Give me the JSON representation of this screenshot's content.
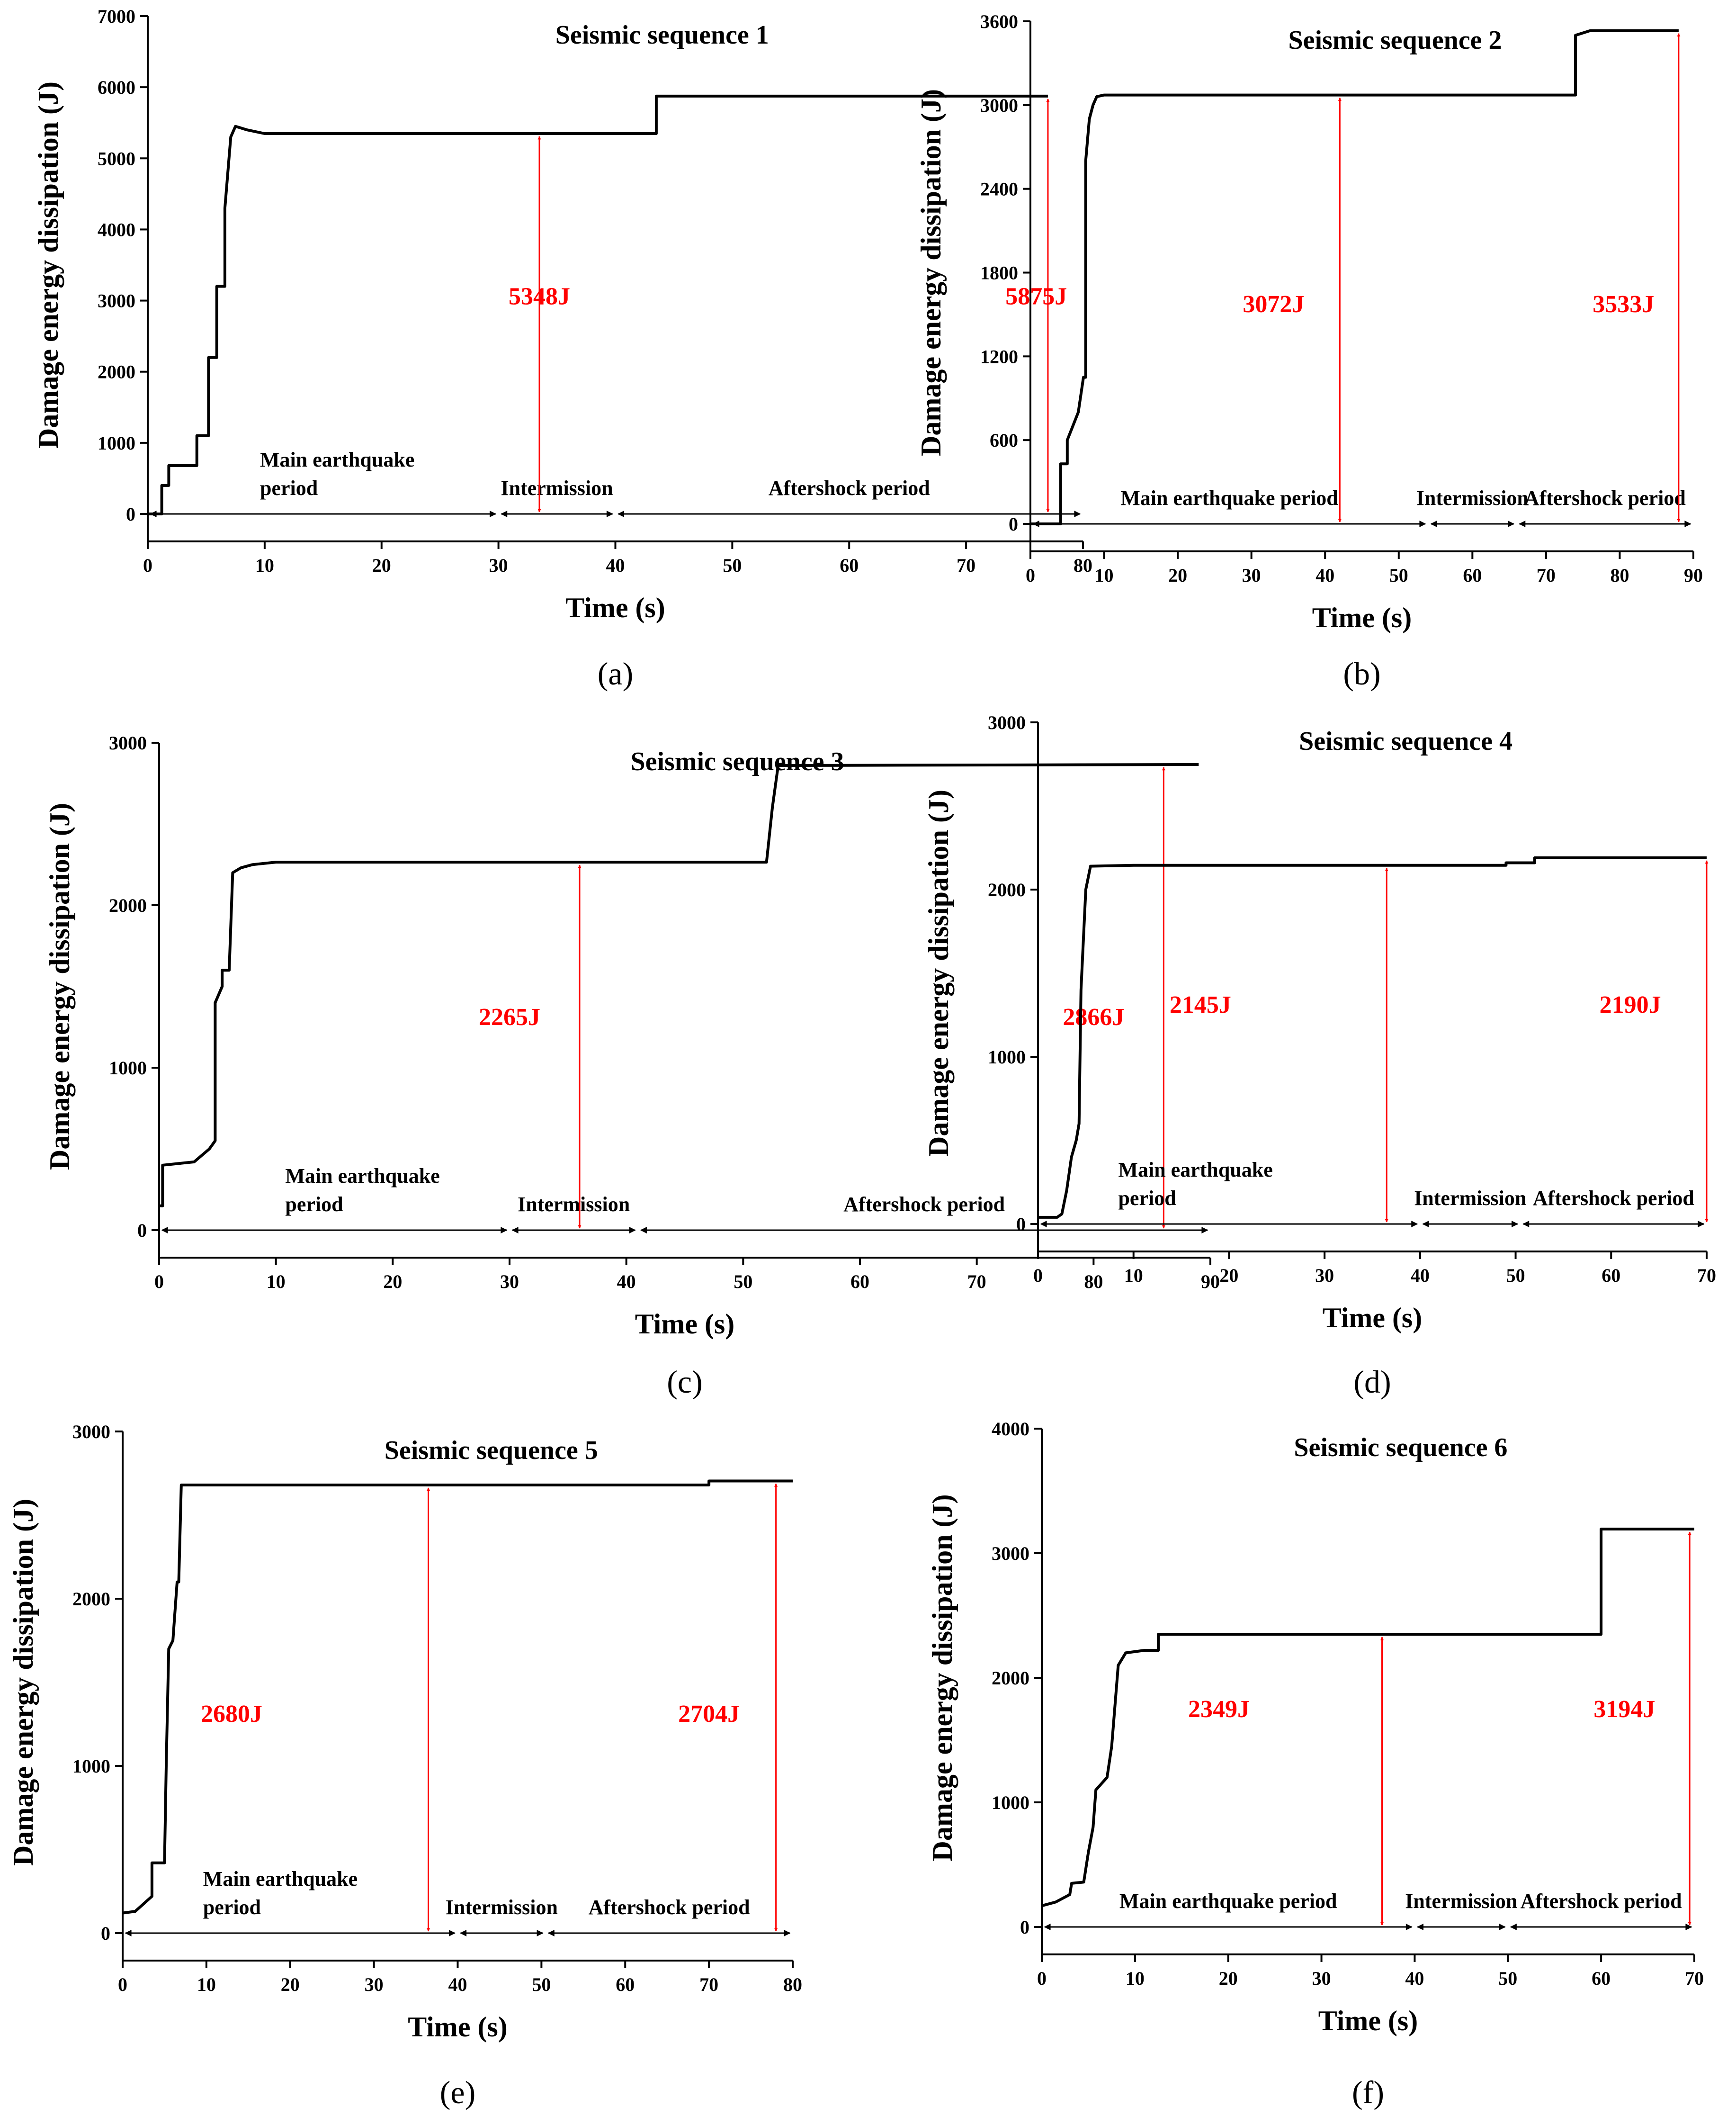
{
  "chart_data": [
    {
      "type": "line",
      "panel": "(a)",
      "title": "Seismic sequence 1",
      "xlabel": "Time  (s)",
      "ylabel": "Damage energy dissipation (J)",
      "xlim": [
        0,
        80
      ],
      "ylim": [
        0,
        7000
      ],
      "xticks": [
        0,
        10,
        20,
        30,
        40,
        50,
        60,
        70,
        80
      ],
      "yticks": [
        0,
        1000,
        2000,
        3000,
        4000,
        5000,
        6000,
        7000
      ],
      "series": [
        {
          "name": "Damage energy dissipation",
          "x": [
            0,
            1.2,
            1.2,
            1.8,
            1.8,
            4.2,
            4.2,
            5.2,
            5.2,
            5.9,
            5.9,
            6.6,
            6.6,
            7.1,
            7.5,
            8.5,
            10,
            43.5,
            43.5,
            77
          ],
          "y": [
            0,
            0,
            400,
            400,
            680,
            680,
            1100,
            1100,
            2200,
            2200,
            3200,
            3200,
            4300,
            5300,
            5450,
            5400,
            5348,
            5348,
            5875,
            5875
          ]
        }
      ],
      "energy_labels": [
        {
          "text": "5348J",
          "x": 33.5,
          "value": 5348
        },
        {
          "text": "5875J",
          "x": 77,
          "value": 5875
        }
      ],
      "periods": [
        {
          "label": "Main earthquake period",
          "lines": [
            "Main earthquake",
            "period"
          ],
          "x0": 0,
          "x1": 30
        },
        {
          "label": "Intermission",
          "lines": [
            "Intermission"
          ],
          "x0": 30,
          "x1": 40
        },
        {
          "label": "Aftershock period",
          "lines": [
            "Aftershock period"
          ],
          "x0": 40,
          "x1": 80
        }
      ],
      "label_x": [
        33.5,
        76
      ]
    },
    {
      "type": "line",
      "panel": "(b)",
      "title": "Seismic sequence 2",
      "xlabel": "Time  (s)",
      "ylabel": "Damage energy dissipation (J)",
      "xlim": [
        0,
        90
      ],
      "ylim": [
        0,
        3600
      ],
      "xticks": [
        0,
        10,
        20,
        30,
        40,
        50,
        60,
        70,
        80,
        90
      ],
      "yticks": [
        0,
        600,
        1200,
        1800,
        2400,
        3000,
        3600
      ],
      "series": [
        {
          "name": "Damage energy dissipation",
          "x": [
            0,
            4.1,
            4.1,
            5,
            5,
            6.5,
            7.2,
            7.5,
            7.5,
            8,
            8.5,
            9,
            10,
            74,
            74,
            76,
            88
          ],
          "y": [
            0,
            0,
            430,
            430,
            600,
            800,
            1050,
            1050,
            2600,
            2900,
            3000,
            3060,
            3072,
            3072,
            3500,
            3533,
            3533
          ]
        }
      ],
      "energy_labels": [
        {
          "text": "3072J",
          "x": 42,
          "value": 3072
        },
        {
          "text": "3533J",
          "x": 88,
          "value": 3533
        }
      ],
      "periods": [
        {
          "label": "Main earthquake period",
          "lines": [
            "Main earthquake period"
          ],
          "x0": 0,
          "x1": 54
        },
        {
          "label": "Intermission",
          "lines": [
            "Intermission"
          ],
          "x0": 54,
          "x1": 66
        },
        {
          "label": "Aftershock period",
          "lines": [
            "Aftershock period"
          ],
          "x0": 66,
          "x1": 90
        }
      ],
      "label_x": [
        33,
        80.5
      ]
    },
    {
      "type": "line",
      "panel": "(c)",
      "title": "Seismic sequence 3",
      "xlabel": "Time  (s)",
      "ylabel": "Damage energy dissipation (J)",
      "xlim": [
        0,
        90
      ],
      "ylim": [
        0,
        3000
      ],
      "xticks": [
        0,
        10,
        20,
        30,
        40,
        50,
        60,
        70,
        80,
        90
      ],
      "yticks": [
        0,
        1000,
        2000,
        3000
      ],
      "series": [
        {
          "name": "Damage energy dissipation",
          "x": [
            0,
            0.3,
            0.3,
            3,
            4.3,
            4.8,
            4.8,
            5.4,
            5.4,
            6,
            6.3,
            7,
            8,
            10,
            52,
            52.5,
            53,
            89
          ],
          "y": [
            150,
            150,
            400,
            420,
            500,
            550,
            1400,
            1500,
            1600,
            1600,
            2200,
            2230,
            2250,
            2265,
            2265,
            2600,
            2860,
            2866
          ]
        }
      ],
      "energy_labels": [
        {
          "text": "2265J",
          "x": 36,
          "value": 2265
        },
        {
          "text": "2866J",
          "x": 86,
          "value": 2866
        }
      ],
      "periods": [
        {
          "label": "Main earthquake period",
          "lines": [
            "Main earthquake",
            "period"
          ],
          "x0": 0,
          "x1": 30
        },
        {
          "label": "Intermission",
          "lines": [
            "Intermission"
          ],
          "x0": 30,
          "x1": 41
        },
        {
          "label": "Aftershock period",
          "lines": [
            "Aftershock period"
          ],
          "x0": 41,
          "x1": 90
        }
      ],
      "label_x": [
        30,
        80
      ]
    },
    {
      "type": "line",
      "panel": "(d)",
      "title": "Seismic sequence 4",
      "xlabel": "Time  (s)",
      "ylabel": "Damage energy dissipation (J)",
      "xlim": [
        0,
        70
      ],
      "ylim": [
        0,
        3000
      ],
      "xticks": [
        0,
        10,
        20,
        30,
        40,
        50,
        60,
        70
      ],
      "yticks": [
        0,
        1000,
        2000,
        3000
      ],
      "series": [
        {
          "name": "Damage energy dissipation",
          "x": [
            0,
            2,
            2.5,
            3,
            3.5,
            4,
            4.3,
            4.5,
            5,
            5.5,
            10,
            49,
            49,
            52,
            52,
            70
          ],
          "y": [
            40,
            40,
            60,
            200,
            400,
            500,
            600,
            1400,
            2000,
            2140,
            2145,
            2145,
            2160,
            2160,
            2190,
            2190
          ]
        }
      ],
      "energy_labels": [
        {
          "text": "2145J",
          "x": 36.5,
          "value": 2145
        },
        {
          "text": "2190J",
          "x": 70,
          "value": 2190
        }
      ],
      "periods": [
        {
          "label": "Main earthquake period",
          "lines": [
            "Main earthquake",
            "period"
          ],
          "x0": 0,
          "x1": 40
        },
        {
          "label": "Intermission",
          "lines": [
            "Intermission"
          ],
          "x0": 40,
          "x1": 50.5
        },
        {
          "label": "Aftershock period",
          "lines": [
            "Aftershock period"
          ],
          "x0": 50.5,
          "x1": 70
        }
      ],
      "label_x": [
        17,
        62
      ]
    },
    {
      "type": "line",
      "panel": "(e)",
      "title": "Seismic sequence 5",
      "xlabel": "Time  (s)",
      "ylabel": "Damage energy dissipation (J)",
      "xlim": [
        0,
        80
      ],
      "ylim": [
        0,
        3000
      ],
      "xticks": [
        0,
        10,
        20,
        30,
        40,
        50,
        60,
        70,
        80
      ],
      "yticks": [
        0,
        1000,
        2000,
        3000
      ],
      "series": [
        {
          "name": "Damage energy dissipation",
          "x": [
            0,
            1.5,
            3.5,
            3.5,
            5,
            5.2,
            5.5,
            6,
            6.5,
            6.7,
            7,
            10,
            70,
            70,
            80
          ],
          "y": [
            120,
            130,
            220,
            420,
            420,
            1000,
            1700,
            1750,
            2100,
            2100,
            2680,
            2680,
            2680,
            2704,
            2704
          ]
        }
      ],
      "energy_labels": [
        {
          "text": "2680J",
          "x": 36.5,
          "value": 2680
        },
        {
          "text": "2704J",
          "x": 78,
          "value": 2704
        }
      ],
      "periods": [
        {
          "label": "Main earthquake period",
          "lines": [
            "Main earthquake",
            "period"
          ],
          "x0": 0,
          "x1": 40
        },
        {
          "label": "Intermission",
          "lines": [
            "Intermission"
          ],
          "x0": 40,
          "x1": 50.5
        },
        {
          "label": "Aftershock period",
          "lines": [
            "Aftershock period"
          ],
          "x0": 50.5,
          "x1": 80
        }
      ],
      "label_x": [
        13,
        70
      ]
    },
    {
      "type": "line",
      "panel": "(f)",
      "title": "Seismic sequence 6",
      "xlabel": "Time  (s)",
      "ylabel": "Damage energy dissipation (J)",
      "xlim": [
        0,
        70
      ],
      "ylim": [
        0,
        4000
      ],
      "xticks": [
        0,
        10,
        20,
        30,
        40,
        50,
        60,
        70
      ],
      "yticks": [
        0,
        1000,
        2000,
        3000,
        4000
      ],
      "series": [
        {
          "name": "Damage energy dissipation",
          "x": [
            0,
            1.5,
            3,
            3.2,
            4.5,
            5,
            5.5,
            5.8,
            5.8,
            7,
            7.5,
            7.5,
            8.2,
            8.2,
            9,
            11,
            12.5,
            12.5,
            60,
            60,
            70
          ],
          "y": [
            170,
            200,
            260,
            350,
            360,
            600,
            800,
            1100,
            1100,
            1200,
            1450,
            1450,
            2100,
            2100,
            2200,
            2220,
            2220,
            2349,
            2349,
            3194,
            3194
          ]
        }
      ],
      "energy_labels": [
        {
          "text": "2349J",
          "x": 36.5,
          "value": 2349
        },
        {
          "text": "3194J",
          "x": 69.5,
          "value": 3194
        }
      ],
      "periods": [
        {
          "label": "Main earthquake period",
          "lines": [
            "Main earthquake period"
          ],
          "x0": 0,
          "x1": 40
        },
        {
          "label": "Intermission",
          "lines": [
            "Intermission"
          ],
          "x0": 40,
          "x1": 50
        },
        {
          "label": "Aftershock period",
          "lines": [
            "Aftershock period"
          ],
          "x0": 50,
          "x1": 70
        }
      ],
      "label_x": [
        19,
        62.5
      ]
    }
  ]
}
